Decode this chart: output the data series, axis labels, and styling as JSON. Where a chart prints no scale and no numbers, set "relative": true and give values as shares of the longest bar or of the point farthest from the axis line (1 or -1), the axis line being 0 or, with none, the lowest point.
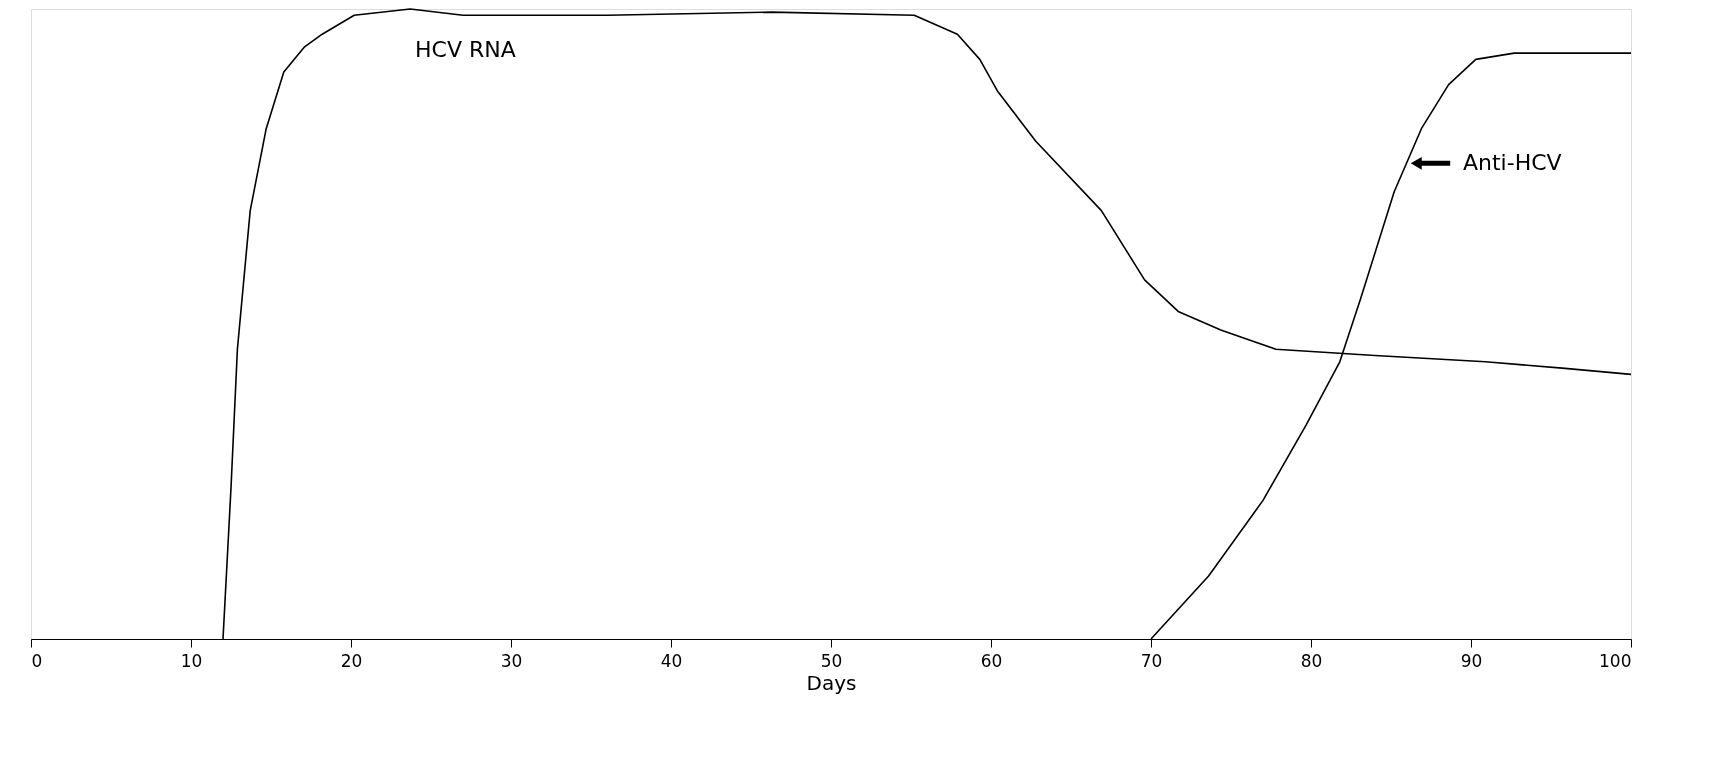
{
  "chart_data": {
    "type": "line",
    "relative": true,
    "xlabel": "Days",
    "xlim": [
      0,
      100
    ],
    "xticks": [
      0,
      10,
      20,
      30,
      40,
      50,
      60,
      70,
      80,
      90,
      100
    ],
    "grid": false,
    "marker": "none",
    "line_style": "solid",
    "series": [
      {
        "name": "HCV RNA",
        "color": "#000000",
        "x": [
          12,
          12.5,
          12.9,
          13.7,
          14.7,
          15.8,
          17.1,
          18.2,
          20.2,
          23.7,
          27,
          36,
          46.3,
          55.2,
          57.9,
          59.3,
          60.4,
          62.8,
          66.9,
          69.6,
          71.7,
          74.4,
          77.8,
          84,
          90.9,
          95.7,
          100
        ],
        "values": [
          0,
          0.24,
          0.46,
          0.68,
          0.81,
          0.9,
          0.94,
          0.96,
          0.99,
          1,
          0.99,
          0.99,
          0.995,
          0.99,
          0.96,
          0.92,
          0.87,
          0.79,
          0.68,
          0.57,
          0.52,
          0.49,
          0.46,
          0.45,
          0.44,
          0.43,
          0.42
        ]
      },
      {
        "name": "Anti-HCV",
        "color": "#000000",
        "x": [
          70,
          73.6,
          77,
          79.7,
          81.8,
          83.1,
          85.2,
          86.9,
          88.6,
          90.3,
          92.7,
          100
        ],
        "values": [
          0,
          0.1,
          0.22,
          0.34,
          0.44,
          0.54,
          0.71,
          0.81,
          0.88,
          0.92,
          0.93,
          0.93
        ]
      }
    ]
  }
}
